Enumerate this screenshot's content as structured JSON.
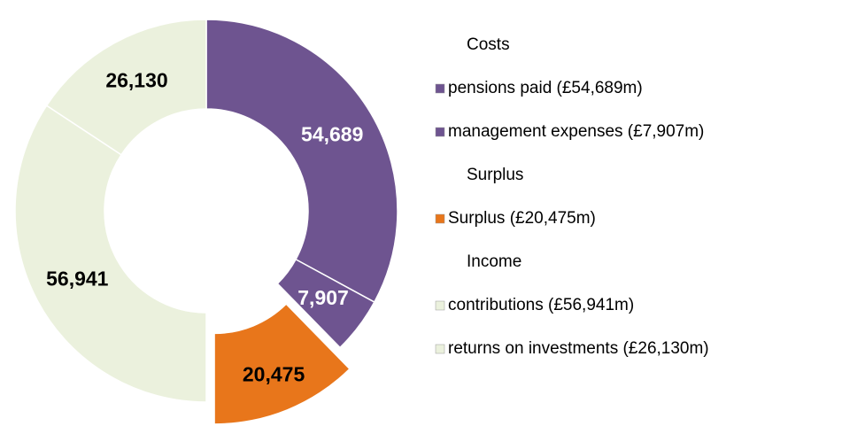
{
  "chart_data": {
    "type": "donut",
    "groups": [
      {
        "name": "Costs",
        "color": "#6e5490",
        "explode": false,
        "categories": [
          "pensions paid (£54,689m)",
          "management expenses (£7,907m)"
        ],
        "values": [
          54689,
          7907
        ],
        "value_labels": [
          "54,689",
          "7,907"
        ]
      },
      {
        "name": "Surplus",
        "color": "#e8761b",
        "explode": true,
        "categories": [
          "Surplus (£20,475m)"
        ],
        "values": [
          20475
        ],
        "value_labels": [
          "20,475"
        ]
      },
      {
        "name": "Income",
        "color": "#ebf1dd",
        "explode": false,
        "categories": [
          "contributions  (£56,941m)",
          "returns on investments (£26,130m)"
        ],
        "values": [
          56941,
          26130
        ],
        "value_labels": [
          "56,941",
          "26,130"
        ]
      }
    ]
  }
}
